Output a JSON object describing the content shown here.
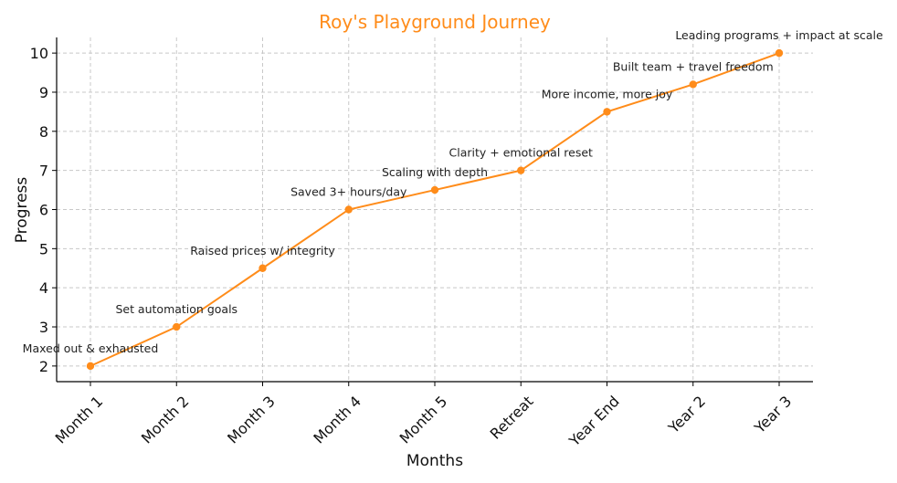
{
  "chart_data": {
    "type": "line",
    "title": "Roy's Playground Journey",
    "xlabel": "Months",
    "ylabel": "Progress",
    "categories": [
      "Month 1",
      "Month 2",
      "Month 3",
      "Month 4",
      "Month 5",
      "Retreat",
      "Year End",
      "Year 2",
      "Year 3"
    ],
    "series": [
      {
        "values": [
          2,
          3,
          4.5,
          6,
          6.5,
          7,
          8.5,
          9.2,
          10
        ]
      }
    ],
    "annotations": [
      "Maxed out & exhausted",
      "Set automation goals",
      "Raised prices w/ integrity",
      "Saved 3+ hours/day",
      "Scaling with depth",
      "Clarity + emotional reset",
      "More income, more joy",
      "Built team + travel freedom",
      "Leading programs + impact at scale"
    ],
    "yticks": [
      2,
      3,
      4,
      5,
      6,
      7,
      8,
      9,
      10
    ],
    "ylim": [
      1.6,
      10.4
    ],
    "grid": true,
    "colors": {
      "line": "#ff8c1a",
      "title": "#ff8c1a"
    }
  }
}
